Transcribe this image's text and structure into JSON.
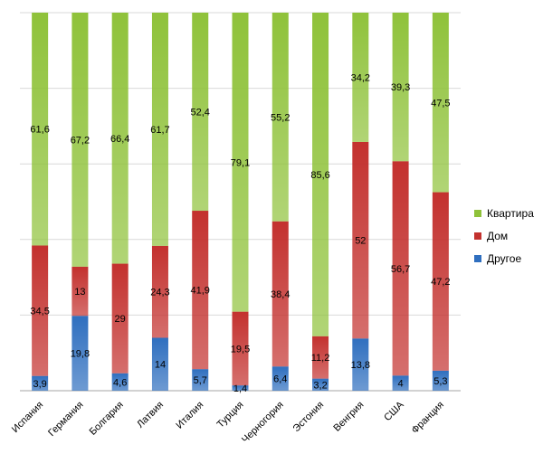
{
  "chart_data": {
    "type": "bar",
    "stacked": true,
    "percent_stacked": true,
    "categories": [
      "Испания",
      "Германия",
      "Болгария",
      "Латвия",
      "Италия",
      "Турция",
      "Черногория",
      "Эстония",
      "Венгрия",
      "США",
      "Франция"
    ],
    "series": [
      {
        "name": "Другое",
        "color": "#2f6fbf",
        "values": [
          3.9,
          19.8,
          4.6,
          14,
          5.7,
          1.4,
          6.4,
          3.2,
          13.8,
          4,
          5.3
        ],
        "labels": [
          "3,9",
          "19,8",
          "4,6",
          "14",
          "5,7",
          "1,4",
          "6,4",
          "3,2",
          "13,8",
          "4",
          "5,3"
        ]
      },
      {
        "name": "Дом",
        "color": "#c3312e",
        "values": [
          34.5,
          13,
          29,
          24.3,
          41.9,
          19.5,
          38.4,
          11.2,
          52,
          56.7,
          47.2
        ],
        "labels": [
          "34,5",
          "13",
          "29",
          "24,3",
          "41,9",
          "19,5",
          "38,4",
          "11,2",
          "52",
          "56,7",
          "47,2"
        ]
      },
      {
        "name": "Квартира",
        "color": "#8fc23a",
        "values": [
          61.6,
          67.2,
          66.4,
          61.7,
          52.4,
          79.1,
          55.2,
          85.6,
          34.2,
          39.3,
          47.5
        ],
        "labels": [
          "61,6",
          "67,2",
          "66,4",
          "61,7",
          "52,4",
          "79,1",
          "55,2",
          "85,6",
          "34,2",
          "39,3",
          "47,5"
        ]
      }
    ],
    "legend": [
      {
        "name": "Квартира",
        "color": "#8fc23a"
      },
      {
        "name": "Дом",
        "color": "#c3312e"
      },
      {
        "name": "Другое",
        "color": "#2f6fbf"
      }
    ],
    "legend_position": "right",
    "gridlines": true,
    "title": "",
    "xlabel": "",
    "ylabel": ""
  }
}
